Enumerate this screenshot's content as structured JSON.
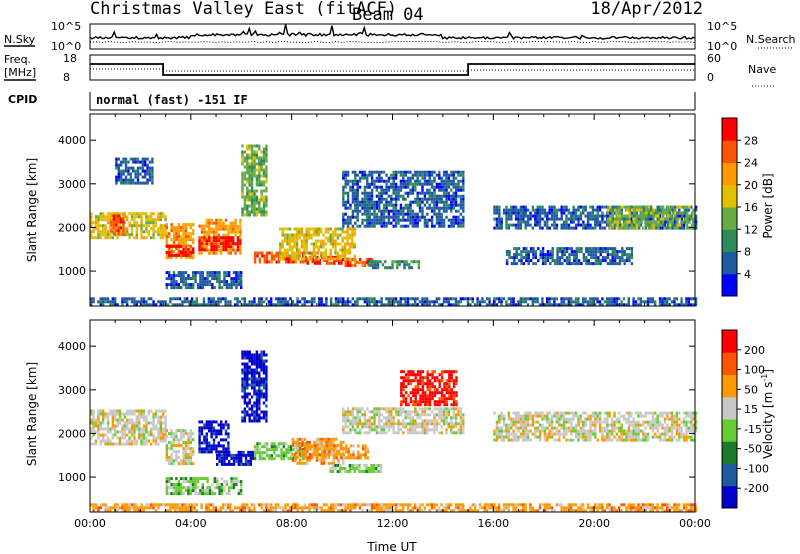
{
  "header": {
    "station": "Christmas Valley East (fitACF)",
    "beam": "Beam 04",
    "date": "18/Apr/2012"
  },
  "top_panels": {
    "nsky_label": "N.Sky",
    "nsearch_label": "N.Search",
    "nsky_ticks": [
      "10^5",
      "10^0"
    ],
    "nsearch_ticks": [
      "10^5",
      "10^0"
    ],
    "freq_label_1": "Freq.",
    "freq_label_2": "[MHz]",
    "freq_ticks": [
      "18",
      "8"
    ],
    "nave_label": "Nave",
    "nave_ticks": [
      "60",
      "0"
    ],
    "cpid_label": "CPID",
    "cpid_text": "normal (fast) -151 IF"
  },
  "colors": {
    "power_scale": [
      "#0000ff",
      "#1e5aa0",
      "#2e8b57",
      "#66aa44",
      "#e0c000",
      "#ff9900",
      "#ff5500",
      "#ff0000"
    ],
    "velocity_scale": [
      "#0000cc",
      "#1e5aa0",
      "#1a7a2a",
      "#66cc33",
      "#c8c8c8",
      "#ff9900",
      "#ff5500",
      "#ff0000"
    ]
  },
  "chart_data": [
    {
      "type": "heatmap",
      "panel": "power",
      "xlabel": "",
      "ylabel": "Slant Range [km]",
      "x_range_hours": [
        0,
        24
      ],
      "ylim": [
        200,
        4600
      ],
      "y_ticks": [
        1000,
        2000,
        3000,
        4000
      ],
      "colorbar_label": "Power [dB]",
      "colorbar_ticks": [
        "28",
        "24",
        "20",
        "16",
        "12",
        "8",
        "4"
      ],
      "grid": false,
      "bands": [
        {
          "x": [
            0.0,
            3.0
          ],
          "y": [
            1750,
            2350
          ],
          "level": 4
        },
        {
          "x": [
            0.8,
            1.3
          ],
          "y": [
            1850,
            2300
          ],
          "level": 6
        },
        {
          "x": [
            3.0,
            4.1
          ],
          "y": [
            1300,
            2100
          ],
          "level": 5
        },
        {
          "x": [
            3.0,
            4.1
          ],
          "y": [
            1350,
            1600
          ],
          "level": 7
        },
        {
          "x": [
            4.3,
            6.0
          ],
          "y": [
            1400,
            2200
          ],
          "level": 5
        },
        {
          "x": [
            4.3,
            6.0
          ],
          "y": [
            1500,
            1800
          ],
          "level": 7
        },
        {
          "x": [
            6.5,
            9.0
          ],
          "y": [
            1200,
            1450
          ],
          "level": 6
        },
        {
          "x": [
            8.5,
            10.0
          ],
          "y": [
            1150,
            1350
          ],
          "level": 7
        },
        {
          "x": [
            10.0,
            11.2
          ],
          "y": [
            1100,
            1300
          ],
          "level": 6
        },
        {
          "x": [
            11.0,
            13.0
          ],
          "y": [
            1100,
            1250
          ],
          "level": 2
        },
        {
          "x": [
            7.5,
            10.5
          ],
          "y": [
            1300,
            2000
          ],
          "level": 4
        },
        {
          "x": [
            10.0,
            14.8
          ],
          "y": [
            2000,
            3300
          ],
          "level": 1
        },
        {
          "x": [
            16.0,
            24.0
          ],
          "y": [
            1950,
            2500
          ],
          "level": 1
        },
        {
          "x": [
            20.5,
            24.0
          ],
          "y": [
            2000,
            2500
          ],
          "level": 3
        },
        {
          "x": [
            16.5,
            21.5
          ],
          "y": [
            1200,
            1550
          ],
          "level": 1
        },
        {
          "x": [
            6.0,
            7.0
          ],
          "y": [
            2300,
            3900
          ],
          "level": 3
        },
        {
          "x": [
            3.0,
            6.0
          ],
          "y": [
            600,
            1000
          ],
          "level": 1
        },
        {
          "x": [
            1.0,
            2.5
          ],
          "y": [
            3000,
            3600
          ],
          "level": 1
        },
        {
          "x": [
            0.0,
            24.0
          ],
          "y": [
            200,
            400
          ],
          "level": 1
        }
      ]
    },
    {
      "type": "heatmap",
      "panel": "velocity",
      "xlabel": "Time UT",
      "ylabel": "Slant Range [km]",
      "x_range_hours": [
        0,
        24
      ],
      "x_ticks": [
        "00:00",
        "04:00",
        "08:00",
        "12:00",
        "16:00",
        "20:00",
        "00:00"
      ],
      "ylim": [
        200,
        4600
      ],
      "y_ticks": [
        1000,
        2000,
        3000,
        4000
      ],
      "colorbar_label": "Velocity [m s^-1]",
      "colorbar_ticks": [
        "200",
        "100",
        "50",
        "15",
        "-15",
        "-50",
        "-100",
        "-200"
      ],
      "grid": false,
      "bands": [
        {
          "x": [
            0.0,
            3.0
          ],
          "y": [
            1750,
            2550
          ],
          "level": 4
        },
        {
          "x": [
            3.0,
            4.1
          ],
          "y": [
            1300,
            2100
          ],
          "level": 4
        },
        {
          "x": [
            4.3,
            5.5
          ],
          "y": [
            1600,
            2300
          ],
          "level": 0
        },
        {
          "x": [
            5.0,
            6.5
          ],
          "y": [
            1300,
            1600
          ],
          "level": 0
        },
        {
          "x": [
            6.5,
            8.5
          ],
          "y": [
            1400,
            1800
          ],
          "level": 3
        },
        {
          "x": [
            8.0,
            10.0
          ],
          "y": [
            1300,
            1900
          ],
          "level": 5
        },
        {
          "x": [
            8.5,
            11.0
          ],
          "y": [
            1450,
            1750
          ],
          "level": 5
        },
        {
          "x": [
            9.5,
            11.5
          ],
          "y": [
            1100,
            1300
          ],
          "level": 3
        },
        {
          "x": [
            12.3,
            14.5
          ],
          "y": [
            2650,
            3450
          ],
          "level": 7
        },
        {
          "x": [
            10.0,
            14.8
          ],
          "y": [
            2000,
            2600
          ],
          "level": 4
        },
        {
          "x": [
            16.0,
            24.0
          ],
          "y": [
            1850,
            2500
          ],
          "level": 4
        },
        {
          "x": [
            3.0,
            6.0
          ],
          "y": [
            650,
            1000
          ],
          "level": 3
        },
        {
          "x": [
            6.0,
            7.0
          ],
          "y": [
            2300,
            3900
          ],
          "level": 0
        },
        {
          "x": [
            0.0,
            24.0
          ],
          "y": [
            250,
            400
          ],
          "level": 5
        }
      ]
    }
  ]
}
